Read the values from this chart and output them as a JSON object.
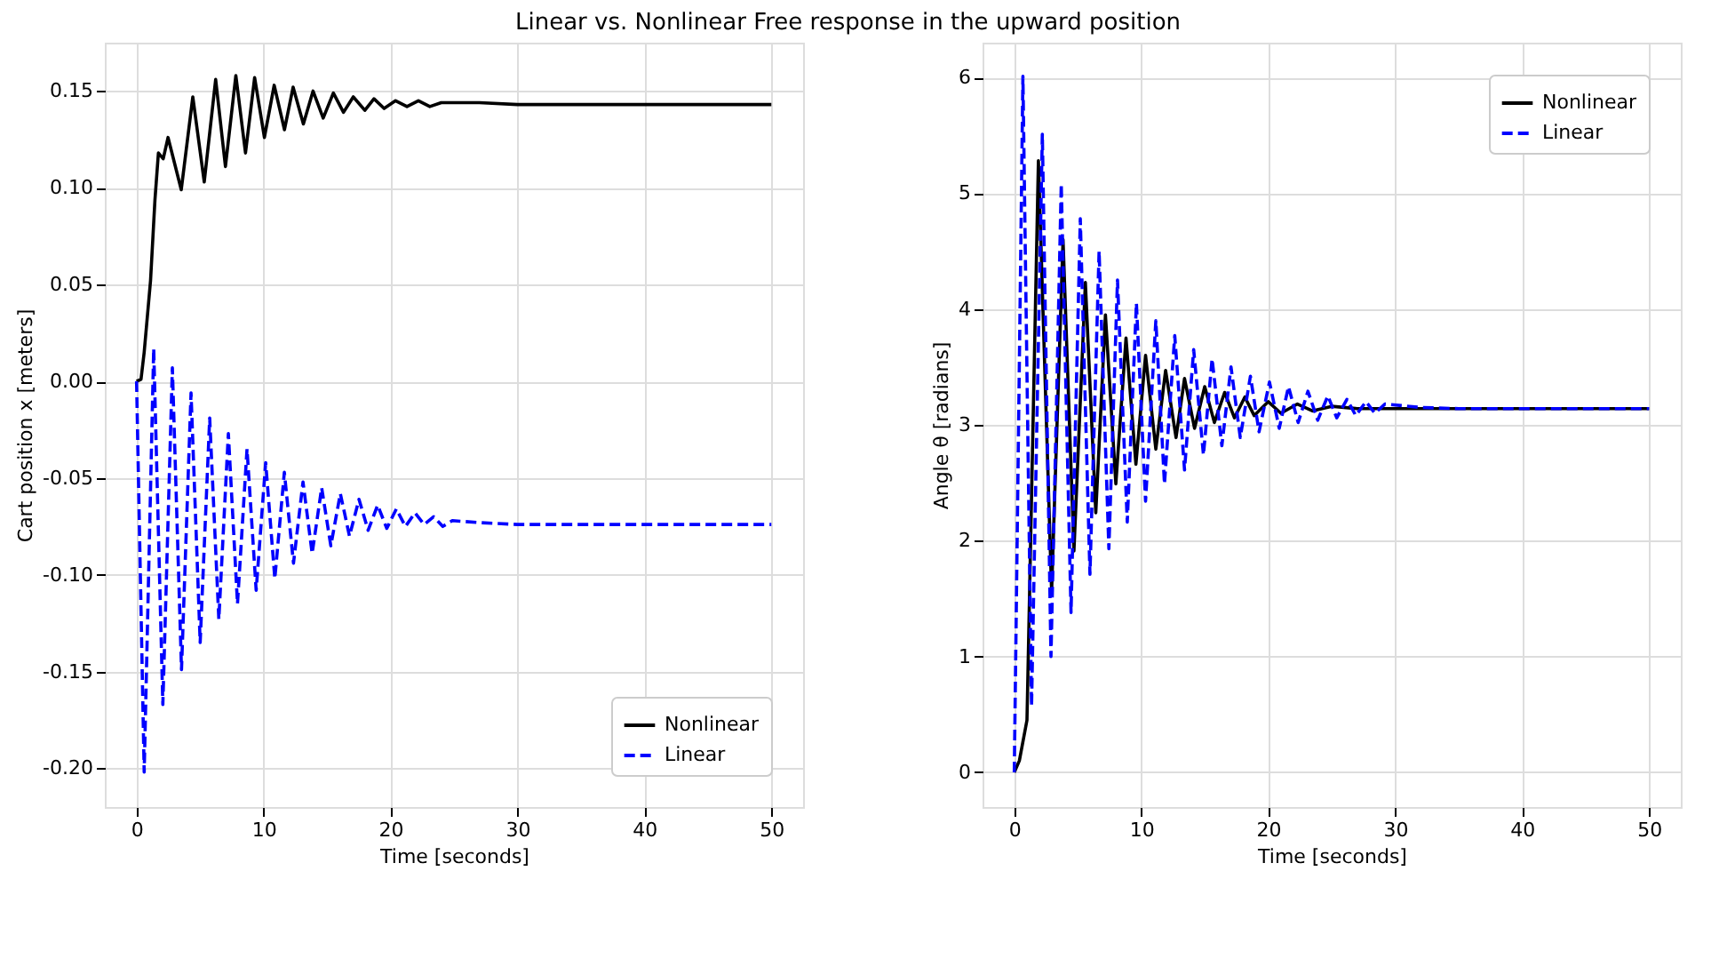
{
  "chart_data": [
    {
      "type": "line",
      "title": "Linear vs. Nonlinear Free response in the upward position",
      "xlabel": "Time [seconds]",
      "ylabel": "Cart position x [meters]",
      "xlim": [
        -2.5,
        52.5
      ],
      "xticks": [
        0,
        10,
        20,
        30,
        40,
        50
      ],
      "ylim": [
        -0.22,
        0.175
      ],
      "yticks": [
        {
          "value": -0.2,
          "label": "-0.20"
        },
        {
          "value": -0.15,
          "label": "-0.15"
        },
        {
          "value": -0.1,
          "label": "-0.10"
        },
        {
          "value": -0.05,
          "label": "-0.05"
        },
        {
          "value": 0,
          "label": "0.00"
        },
        {
          "value": 0.05,
          "label": "0.05"
        },
        {
          "value": 0.1,
          "label": "0.10"
        },
        {
          "value": 0.15,
          "label": "0.15"
        }
      ],
      "grid": true,
      "legend": "bottom right",
      "marker": "none",
      "series": [
        {
          "name": "Nonlinear",
          "color": "#000000",
          "line_style": "solid",
          "x": [
            0,
            0.35,
            0.6,
            1.1,
            1.45,
            1.72,
            2.1,
            2.48,
            3.52,
            4.43,
            5.33,
            6.23,
            7.0,
            7.82,
            8.58,
            9.3,
            10.07,
            10.84,
            11.65,
            12.33,
            13.14,
            13.9,
            14.7,
            15.5,
            16.3,
            17.07,
            17.98,
            18.7,
            19.5,
            20.4,
            21.3,
            22.2,
            23.1,
            24.0,
            27,
            30,
            50
          ],
          "values": [
            0,
            0.001,
            0.015,
            0.052,
            0.094,
            0.118,
            0.115,
            0.126,
            0.099,
            0.147,
            0.103,
            0.156,
            0.111,
            0.158,
            0.118,
            0.157,
            0.126,
            0.153,
            0.13,
            0.152,
            0.133,
            0.15,
            0.136,
            0.149,
            0.139,
            0.147,
            0.14,
            0.146,
            0.141,
            0.145,
            0.142,
            0.145,
            0.142,
            0.144,
            0.144,
            0.143,
            0.143
          ]
        },
        {
          "name": "Linear",
          "color": "#0000ff",
          "line_style": "dashed",
          "x": [
            0,
            0.6,
            1.35,
            2.07,
            2.82,
            3.54,
            4.29,
            5.01,
            5.76,
            6.48,
            7.23,
            7.95,
            8.7,
            9.42,
            10.17,
            10.89,
            11.64,
            12.36,
            13.11,
            13.83,
            14.58,
            15.3,
            16.05,
            16.77,
            17.52,
            18.24,
            18.99,
            19.71,
            20.46,
            21.18,
            21.93,
            22.65,
            23.4,
            24.12,
            24.87,
            27,
            30,
            35,
            50
          ],
          "values": [
            0,
            -0.202,
            0.017,
            -0.167,
            0.007,
            -0.149,
            -0.006,
            -0.135,
            -0.019,
            -0.123,
            -0.027,
            -0.115,
            -0.035,
            -0.108,
            -0.042,
            -0.102,
            -0.047,
            -0.094,
            -0.052,
            -0.089,
            -0.055,
            -0.085,
            -0.058,
            -0.08,
            -0.061,
            -0.077,
            -0.064,
            -0.076,
            -0.066,
            -0.075,
            -0.068,
            -0.074,
            -0.07,
            -0.075,
            -0.072,
            -0.073,
            -0.074,
            -0.074,
            -0.074
          ]
        }
      ]
    },
    {
      "type": "line",
      "xlabel": "Time [seconds]",
      "ylabel": "Angle θ [radians]",
      "xlim": [
        -2.5,
        52.5
      ],
      "xticks": [
        0,
        10,
        20,
        30,
        40,
        50
      ],
      "ylim": [
        -0.3,
        6.3
      ],
      "yticks": [
        0,
        1,
        2,
        3,
        4,
        5,
        6
      ],
      "grid": true,
      "legend": "top right",
      "marker": "none",
      "series": [
        {
          "name": "Nonlinear",
          "color": "#000000",
          "line_style": "solid",
          "x": [
            0,
            0.4,
            1.0,
            1.9,
            2.94,
            3.84,
            4.7,
            5.6,
            6.42,
            7.18,
            8.0,
            8.8,
            9.58,
            10.34,
            11.15,
            11.92,
            12.74,
            13.41,
            14.2,
            15.0,
            15.76,
            16.57,
            17.34,
            18.16,
            18.9,
            20,
            21,
            22.3,
            23.5,
            25,
            27,
            50
          ],
          "values": [
            0,
            0.1,
            0.45,
            5.28,
            1.56,
            4.6,
            1.91,
            4.23,
            2.24,
            3.95,
            2.49,
            3.75,
            2.66,
            3.6,
            2.79,
            3.47,
            2.89,
            3.4,
            2.97,
            3.33,
            3.02,
            3.28,
            3.06,
            3.24,
            3.08,
            3.2,
            3.1,
            3.18,
            3.12,
            3.16,
            3.14,
            3.14
          ]
        },
        {
          "name": "Linear",
          "color": "#0000ff",
          "line_style": "dashed",
          "x": [
            0,
            0.68,
            1.36,
            2.21,
            2.89,
            3.7,
            4.47,
            5.2,
            5.96,
            6.68,
            7.45,
            8.13,
            8.9,
            9.62,
            10.34,
            11.15,
            11.83,
            12.64,
            13.41,
            14.13,
            14.9,
            15.58,
            16.35,
            17.07,
            17.8,
            18.6,
            19.28,
            20.1,
            20.87,
            21.6,
            22.36,
            23.13,
            23.9,
            24.7,
            25.4,
            26.2,
            26.9,
            27.7,
            28.4,
            29.2,
            32,
            35,
            50
          ],
          "values": [
            0,
            6.01,
            0.57,
            5.51,
            1.0,
            5.08,
            1.38,
            4.78,
            1.71,
            4.5,
            1.93,
            4.25,
            2.16,
            4.05,
            2.34,
            3.9,
            2.49,
            3.77,
            2.61,
            3.65,
            2.74,
            3.57,
            2.82,
            3.5,
            2.89,
            3.42,
            2.94,
            3.37,
            2.97,
            3.33,
            3.02,
            3.29,
            3.04,
            3.25,
            3.06,
            3.22,
            3.08,
            3.2,
            3.1,
            3.18,
            3.15,
            3.14,
            3.14
          ]
        }
      ]
    }
  ]
}
